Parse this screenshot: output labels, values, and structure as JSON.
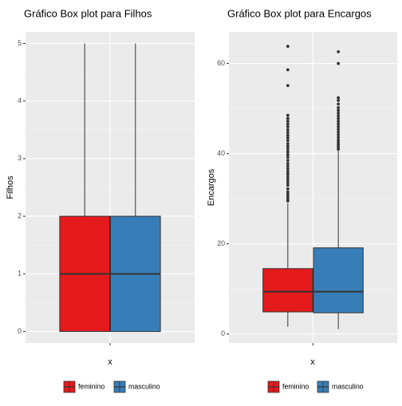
{
  "chart_data": [
    {
      "type": "box",
      "title": "Gráfico Box plot para Filhos",
      "xlabel": "x",
      "ylabel": "Filhos",
      "ylim": [
        -0.2,
        5.2
      ],
      "yticks": [
        0,
        1,
        2,
        3,
        4,
        5
      ],
      "grid": true,
      "legend": "bottom",
      "series": [
        {
          "name": "feminino",
          "color": "#E41A1C",
          "min": 0,
          "q1": 0,
          "median": 1,
          "q3": 2,
          "max": 5,
          "outliers": []
        },
        {
          "name": "masculino",
          "color": "#377EB8",
          "min": 0,
          "q1": 0,
          "median": 1,
          "q3": 2,
          "max": 5,
          "outliers": []
        }
      ]
    },
    {
      "type": "box",
      "title": "Gráfico Box plot para Encargos",
      "xlabel": "x",
      "ylabel": "Encargos",
      "ylim": [
        -2,
        67
      ],
      "yticks": [
        0,
        20,
        40,
        60
      ],
      "grid": true,
      "legend": "bottom",
      "series": [
        {
          "name": "feminino",
          "color": "#E41A1C",
          "min": 1.6,
          "q1": 4.9,
          "median": 9.4,
          "q3": 14.5,
          "max": 29.0,
          "outliers": [
            29.5,
            30.0,
            30.5,
            31.0,
            31.5,
            32.2,
            33.0,
            33.6,
            34.2,
            34.8,
            35.4,
            36.0,
            36.6,
            37.2,
            37.8,
            38.5,
            39.2,
            39.8,
            40.4,
            41.0,
            41.6,
            42.2,
            42.9,
            43.5,
            44.1,
            44.7,
            45.3,
            46.0,
            46.6,
            47.2,
            47.8,
            48.5,
            55.1,
            58.6,
            63.8
          ]
        },
        {
          "name": "masculino",
          "color": "#377EB8",
          "min": 1.1,
          "q1": 4.7,
          "median": 9.4,
          "q3": 19.1,
          "max": 40.7,
          "outliers": [
            41.0,
            41.5,
            42.0,
            42.5,
            43.0,
            43.6,
            44.2,
            44.8,
            45.4,
            46.0,
            46.6,
            47.2,
            47.8,
            48.4,
            49.0,
            49.6,
            50.2,
            51.0,
            51.8,
            52.4,
            60.0,
            62.6
          ]
        }
      ]
    }
  ]
}
